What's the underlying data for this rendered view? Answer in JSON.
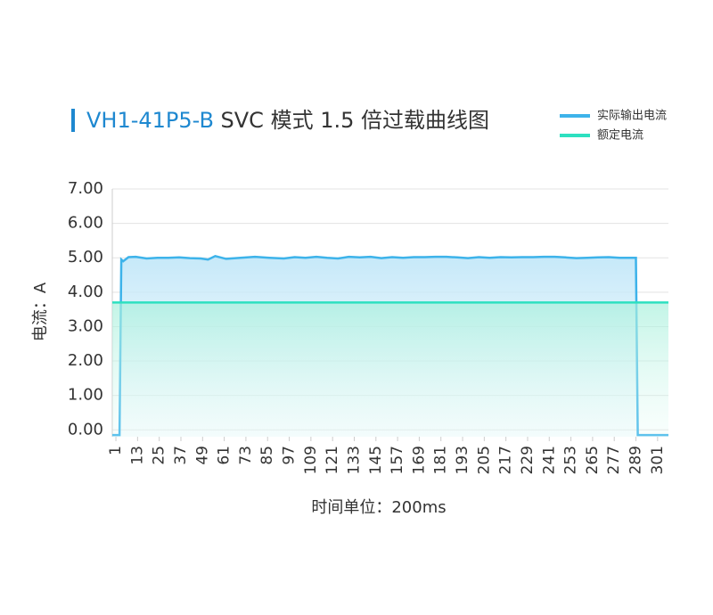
{
  "chart_data": {
    "type": "line",
    "title_parts": [
      "VH1-41P5-B",
      "SVC 模式 1.5 倍过载曲线图"
    ],
    "x_label": "时间单位：200ms",
    "y_label": "电流：A",
    "x": [
      -1,
      3,
      4,
      5,
      8,
      12,
      18,
      24,
      30,
      36,
      42,
      48,
      52,
      56,
      62,
      70,
      78,
      86,
      94,
      100,
      106,
      112,
      118,
      124,
      130,
      136,
      142,
      148,
      154,
      160,
      166,
      172,
      178,
      184,
      190,
      196,
      202,
      208,
      214,
      220,
      226,
      232,
      238,
      244,
      250,
      256,
      262,
      268,
      274,
      280,
      286,
      289,
      290,
      307
    ],
    "series": [
      {
        "name": "实际输出电流",
        "color": "#3db3ea",
        "values": [
          -0.15,
          -0.15,
          4.95,
          4.9,
          5.02,
          5.03,
          4.98,
          5.0,
          5.0,
          5.01,
          4.99,
          4.98,
          4.95,
          5.05,
          4.97,
          5.0,
          5.03,
          5.0,
          4.98,
          5.02,
          5.0,
          5.03,
          5.0,
          4.98,
          5.03,
          5.01,
          5.03,
          4.99,
          5.02,
          5.0,
          5.02,
          5.02,
          5.03,
          5.03,
          5.01,
          4.99,
          5.02,
          5.0,
          5.02,
          5.01,
          5.02,
          5.02,
          5.03,
          5.03,
          5.01,
          4.99,
          5.0,
          5.01,
          5.02,
          5.0,
          5.0,
          5.0,
          -0.15,
          -0.15
        ]
      },
      {
        "name": "额定电流",
        "color": "#2de0c0",
        "values": [
          3.7,
          3.7,
          3.7,
          3.7,
          3.7,
          3.7,
          3.7,
          3.7,
          3.7,
          3.7,
          3.7,
          3.7,
          3.7,
          3.7,
          3.7,
          3.7,
          3.7,
          3.7,
          3.7,
          3.7,
          3.7,
          3.7,
          3.7,
          3.7,
          3.7,
          3.7,
          3.7,
          3.7,
          3.7,
          3.7,
          3.7,
          3.7,
          3.7,
          3.7,
          3.7,
          3.7,
          3.7,
          3.7,
          3.7,
          3.7,
          3.7,
          3.7,
          3.7,
          3.7,
          3.7,
          3.7,
          3.7,
          3.7,
          3.7,
          3.7,
          3.7,
          3.7,
          3.7,
          3.7
        ]
      }
    ],
    "xlim": [
      -1,
      307
    ],
    "xticks": [
      1,
      13,
      25,
      37,
      49,
      61,
      73,
      85,
      97,
      109,
      121,
      133,
      145,
      157,
      169,
      181,
      193,
      205,
      217,
      229,
      241,
      253,
      265,
      277,
      289,
      301
    ],
    "ylim": [
      -0.2,
      7
    ],
    "yticks": [
      {
        "value": 0,
        "label": "0.00"
      },
      {
        "value": 1,
        "label": "1.00"
      },
      {
        "value": 2,
        "label": "2.00"
      },
      {
        "value": 3,
        "label": "3.00"
      },
      {
        "value": 4,
        "label": "4.00"
      },
      {
        "value": 5,
        "label": "5.00"
      },
      {
        "value": 6,
        "label": "6.00"
      },
      {
        "value": 7,
        "label": "7.00"
      }
    ],
    "grid": true,
    "legend": "top-right"
  }
}
